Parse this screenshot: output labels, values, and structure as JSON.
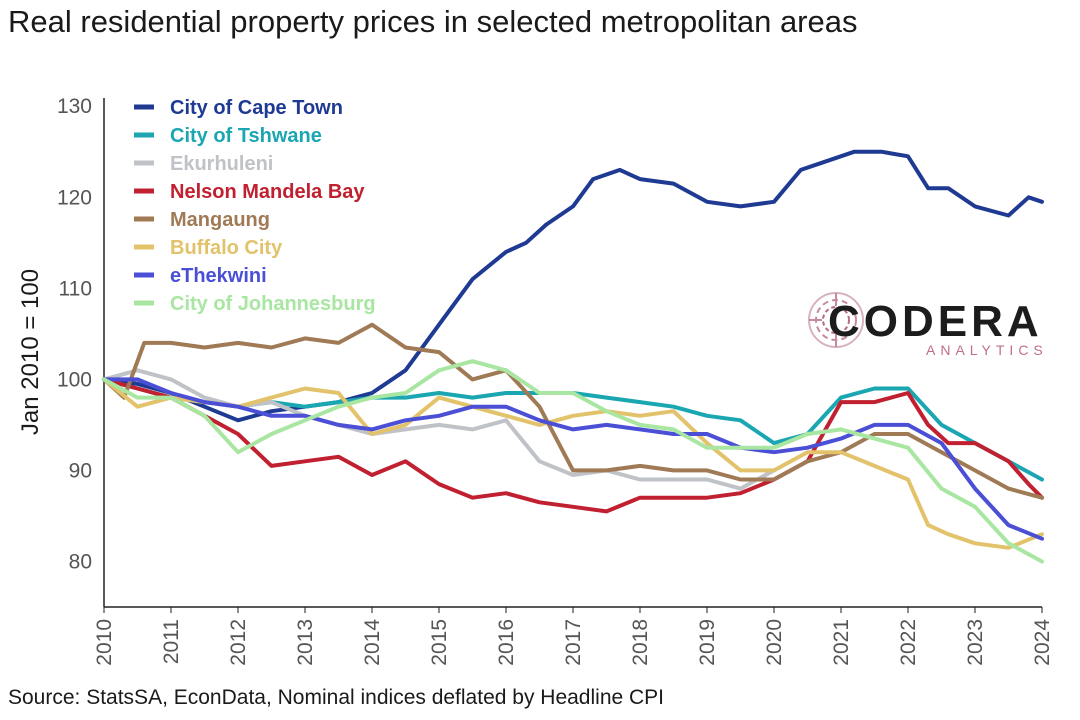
{
  "title": "Real residential property prices in selected metropolitan areas",
  "source": "Source: StatsSA, EconData, Nominal indices deflated by Headline CPI",
  "logo": {
    "word": "CODERA",
    "sub": "ANALYTICS"
  },
  "chart_data": {
    "type": "line",
    "title": "Real residential property prices in selected metropolitan areas",
    "xlabel": "",
    "ylabel": "Jan 2010 = 100",
    "xlim": [
      2010,
      2024
    ],
    "ylim": [
      75,
      132
    ],
    "xticks": [
      2010,
      2011,
      2012,
      2013,
      2014,
      2015,
      2016,
      2017,
      2018,
      2019,
      2020,
      2021,
      2022,
      2023,
      2024
    ],
    "yticks": [
      80,
      90,
      100,
      110,
      120,
      130
    ],
    "grid": false,
    "legend_position": "top-left",
    "series": [
      {
        "name": "City of Cape Town",
        "color": "#1f3a93",
        "x": [
          2010,
          2010.5,
          2011,
          2011.5,
          2012,
          2012.5,
          2013,
          2013.5,
          2014,
          2014.5,
          2015,
          2015.5,
          2016,
          2016.3,
          2016.6,
          2017,
          2017.3,
          2017.7,
          2018,
          2018.5,
          2019,
          2019.5,
          2020,
          2020.4,
          2020.8,
          2021.2,
          2021.6,
          2022,
          2022.3,
          2022.6,
          2023,
          2023.5,
          2023.8,
          2024
        ],
        "y": [
          100,
          99.5,
          98.5,
          97,
          95.5,
          96.5,
          97,
          97.5,
          98.5,
          101,
          106,
          111,
          114,
          115,
          117,
          119,
          122,
          123,
          122,
          121.5,
          119.5,
          119,
          119.5,
          123,
          124,
          125,
          125,
          124.5,
          121,
          121,
          119,
          118,
          120,
          119.5
        ]
      },
      {
        "name": "City of Tshwane",
        "color": "#1aa7b2",
        "x": [
          2010,
          2010.5,
          2011,
          2011.5,
          2012,
          2012.5,
          2013,
          2013.5,
          2014,
          2014.5,
          2015,
          2015.5,
          2016,
          2016.5,
          2017,
          2017.5,
          2018,
          2018.5,
          2019,
          2019.5,
          2020,
          2020.5,
          2021,
          2021.5,
          2022,
          2022.5,
          2023,
          2023.5,
          2024
        ],
        "y": [
          100,
          99,
          98,
          97.5,
          97,
          97.5,
          97,
          97.5,
          98,
          98,
          98.5,
          98,
          98.5,
          98.5,
          98.5,
          98,
          97.5,
          97,
          96,
          95.5,
          93,
          94,
          98,
          99,
          99,
          95,
          93,
          91,
          89
        ]
      },
      {
        "name": "Ekurhuleni",
        "color": "#bfc2c7",
        "x": [
          2010,
          2010.5,
          2011,
          2011.5,
          2012,
          2012.5,
          2013,
          2013.5,
          2014,
          2014.5,
          2015,
          2015.5,
          2016,
          2016.5,
          2017,
          2017.5,
          2018,
          2018.5,
          2019,
          2019.5,
          2020
        ],
        "y": [
          100,
          101,
          100,
          98,
          97,
          97.5,
          96,
          95,
          94,
          94.5,
          95,
          94.5,
          95.5,
          91,
          89.5,
          90,
          89,
          89,
          89,
          88,
          90
        ]
      },
      {
        "name": "Nelson Mandela Bay",
        "color": "#c0202f",
        "x": [
          2010,
          2010.5,
          2011,
          2011.5,
          2012,
          2012.5,
          2013,
          2013.5,
          2014,
          2014.5,
          2015,
          2015.5,
          2016,
          2016.5,
          2017,
          2017.5,
          2018,
          2018.5,
          2019,
          2019.5,
          2020,
          2020.5,
          2021,
          2021.5,
          2022,
          2022.3,
          2022.6,
          2023,
          2023.5,
          2023.8,
          2024
        ],
        "y": [
          100,
          99,
          98,
          96,
          94,
          90.5,
          91,
          91.5,
          89.5,
          91,
          88.5,
          87,
          87.5,
          86.5,
          86,
          85.5,
          87,
          87,
          87,
          87.5,
          89,
          91,
          97.5,
          97.5,
          98.5,
          95,
          93,
          93,
          91,
          88.5,
          87
        ]
      },
      {
        "name": "Mangaung",
        "color": "#a07a55",
        "x": [
          2010,
          2010.3,
          2010.6,
          2011,
          2011.5,
          2012,
          2012.5,
          2013,
          2013.5,
          2014,
          2014.5,
          2015,
          2015.5,
          2016,
          2016.5,
          2017,
          2017.5,
          2018,
          2018.5,
          2019,
          2019.5,
          2020,
          2020.5,
          2021,
          2021.5,
          2022,
          2022.5,
          2023,
          2023.5,
          2024
        ],
        "y": [
          100,
          98,
          104,
          104,
          103.5,
          104,
          103.5,
          104.5,
          104,
          106,
          103.5,
          103,
          100,
          101,
          97,
          90,
          90,
          90.5,
          90,
          90,
          89,
          89,
          91,
          92,
          94,
          94,
          92,
          90,
          88,
          87
        ]
      },
      {
        "name": "Buffalo City",
        "color": "#e2c26a",
        "x": [
          2010,
          2010.5,
          2011,
          2011.5,
          2012,
          2012.5,
          2013,
          2013.5,
          2014,
          2014.5,
          2015,
          2015.5,
          2016,
          2016.5,
          2017,
          2017.5,
          2018,
          2018.5,
          2019,
          2019.5,
          2020,
          2020.5,
          2021,
          2021.5,
          2022,
          2022.3,
          2022.6,
          2023,
          2023.5,
          2024
        ],
        "y": [
          100,
          97,
          98,
          97.5,
          97,
          98,
          99,
          98.5,
          94,
          95,
          98,
          97,
          96,
          95,
          96,
          96.5,
          96,
          96.5,
          93,
          90,
          90,
          92,
          92,
          90.5,
          89,
          84,
          83,
          82,
          81.5,
          83
        ]
      },
      {
        "name": "eThekwini",
        "color": "#4b4fd6",
        "x": [
          2010,
          2010.5,
          2011,
          2011.5,
          2012,
          2012.5,
          2013,
          2013.5,
          2014,
          2014.5,
          2015,
          2015.5,
          2016,
          2016.5,
          2017,
          2017.5,
          2018,
          2018.5,
          2019,
          2019.5,
          2020,
          2020.5,
          2021,
          2021.5,
          2022,
          2022.5,
          2023,
          2023.5,
          2024
        ],
        "y": [
          100,
          100,
          98.5,
          97.5,
          97,
          96,
          96,
          95,
          94.5,
          95.5,
          96,
          97,
          97,
          95.5,
          94.5,
          95,
          94.5,
          94,
          94,
          92.5,
          92,
          92.5,
          93.5,
          95,
          95,
          93,
          88,
          84,
          82.5
        ]
      },
      {
        "name": "City of Johannesburg",
        "color": "#a8e6a1",
        "x": [
          2010,
          2010.5,
          2011,
          2011.5,
          2012,
          2012.5,
          2013,
          2013.5,
          2014,
          2014.5,
          2015,
          2015.5,
          2016,
          2016.5,
          2017,
          2017.5,
          2018,
          2018.5,
          2019,
          2019.5,
          2020,
          2020.5,
          2021,
          2021.5,
          2022,
          2022.5,
          2023,
          2023.5,
          2024
        ],
        "y": [
          100,
          98,
          98,
          96,
          92,
          94,
          95.5,
          97,
          98,
          98.5,
          101,
          102,
          101,
          98.5,
          98.5,
          96.5,
          95,
          94.5,
          92.5,
          92.5,
          92.5,
          94,
          94.5,
          93.5,
          92.5,
          88,
          86,
          82,
          80
        ]
      }
    ]
  }
}
